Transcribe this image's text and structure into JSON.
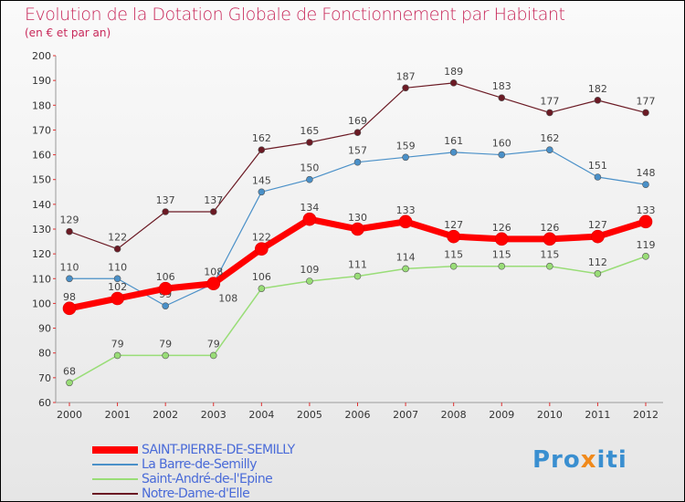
{
  "chart_data": {
    "type": "line",
    "title": "Evolution de la Dotation Globale de Fonctionnement par Habitant",
    "subtitle": "(en € et par an)",
    "x": [
      "2000",
      "2001",
      "2002",
      "2003",
      "2004",
      "2005",
      "2006",
      "2007",
      "2008",
      "2009",
      "2010",
      "2011",
      "2012"
    ],
    "ylim": [
      60,
      200
    ],
    "yticks": [
      60,
      70,
      80,
      90,
      100,
      110,
      120,
      130,
      140,
      150,
      160,
      170,
      180,
      190,
      200
    ],
    "grid": false,
    "legend_position": "bottom-left",
    "series": [
      {
        "name": "Notre-Dame-d'Elle",
        "color": "#6b1a24",
        "width": 1.2,
        "values": [
          129,
          122,
          137,
          137,
          162,
          165,
          169,
          187,
          189,
          183,
          177,
          182,
          177
        ]
      },
      {
        "name": "La Barre-de-Semilly",
        "color": "#4a90c8",
        "width": 1.2,
        "values": [
          110,
          110,
          99,
          108,
          145,
          150,
          157,
          159,
          161,
          160,
          162,
          151,
          148
        ]
      },
      {
        "name": "Saint-André-de-l'Epine",
        "color": "#99dd77",
        "width": 1.5,
        "values": [
          68,
          79,
          79,
          79,
          106,
          109,
          111,
          114,
          115,
          115,
          115,
          112,
          119
        ]
      },
      {
        "name": "SAINT-PIERRE-DE-SEMILLY",
        "color": "#ff0000",
        "width": 7,
        "values": [
          98,
          102,
          106,
          108,
          122,
          134,
          130,
          133,
          127,
          126,
          126,
          127,
          133
        ]
      }
    ]
  },
  "logo": "Proxiti"
}
